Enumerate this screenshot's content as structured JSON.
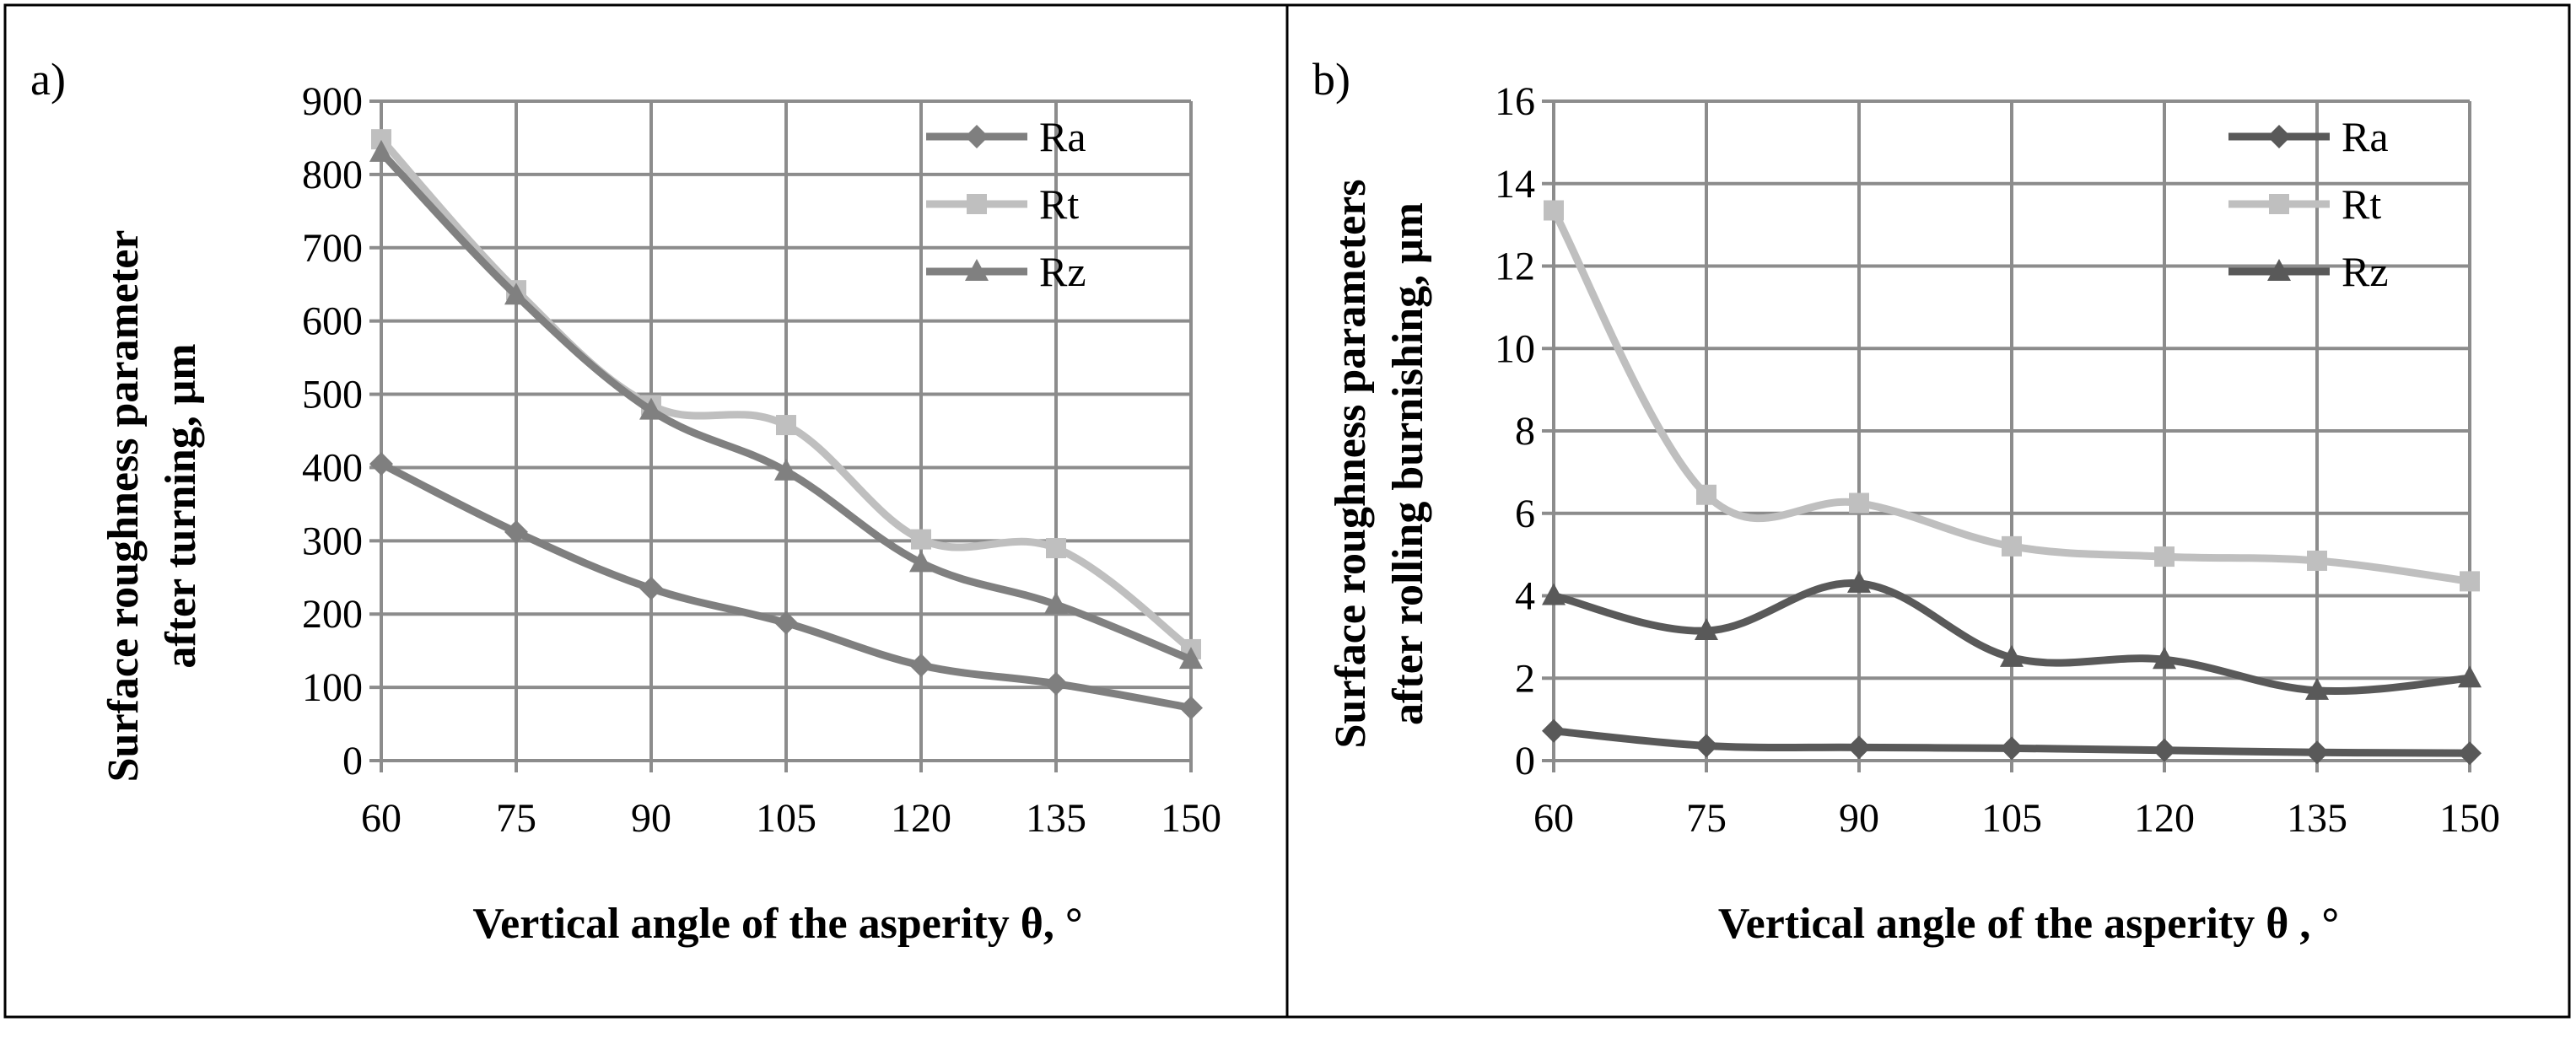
{
  "chart_data": [
    {
      "type": "line",
      "panel_label": "a)",
      "title": "",
      "xlabel": "Vertical angle of the asperity θ, °",
      "ylabel": [
        "Surface roughness parameter",
        "after turning, μm"
      ],
      "x": [
        60,
        75,
        90,
        105,
        120,
        135,
        150
      ],
      "xticks": [
        "60",
        "75",
        "90",
        "105",
        "120",
        "135",
        "150"
      ],
      "yticks": [
        "0",
        "100",
        "200",
        "300",
        "400",
        "500",
        "600",
        "700",
        "800",
        "900"
      ],
      "ylim": [
        0,
        900
      ],
      "grid": true,
      "legend_position": "top-right",
      "series": [
        {
          "name": "Ra",
          "marker": "diamond",
          "color": "#7f7f7f",
          "values": [
            405,
            312,
            235,
            188,
            130,
            105,
            72
          ]
        },
        {
          "name": "Rt",
          "marker": "square",
          "color": "#bfbfbf",
          "values": [
            848,
            642,
            485,
            458,
            302,
            290,
            152
          ]
        },
        {
          "name": "Rz",
          "marker": "triangle",
          "color": "#808080",
          "values": [
            830,
            635,
            478,
            395,
            270,
            213,
            138
          ]
        }
      ]
    },
    {
      "type": "line",
      "panel_label": "b)",
      "title": "",
      "xlabel": "Vertical angle of the asperity θ , °",
      "ylabel": [
        "Surface roughness parameters",
        "after rolling burnishing, μm"
      ],
      "x": [
        60,
        75,
        90,
        105,
        120,
        135,
        150
      ],
      "xticks": [
        "60",
        "75",
        "90",
        "105",
        "120",
        "135",
        "150"
      ],
      "yticks": [
        "0",
        "2",
        "4",
        "6",
        "8",
        "10",
        "12",
        "14",
        "16"
      ],
      "ylim": [
        0,
        16
      ],
      "grid": true,
      "legend_position": "top-right",
      "series": [
        {
          "name": "Ra",
          "marker": "diamond",
          "color": "#595959",
          "values": [
            0.72,
            0.36,
            0.32,
            0.3,
            0.25,
            0.2,
            0.18
          ]
        },
        {
          "name": "Rt",
          "marker": "square",
          "color": "#bfbfbf",
          "values": [
            13.35,
            6.45,
            6.25,
            5.2,
            4.95,
            4.85,
            4.35
          ]
        },
        {
          "name": "Rz",
          "marker": "triangle",
          "color": "#595959",
          "values": [
            4.0,
            3.15,
            4.3,
            2.5,
            2.45,
            1.7,
            2.0
          ]
        }
      ]
    }
  ]
}
